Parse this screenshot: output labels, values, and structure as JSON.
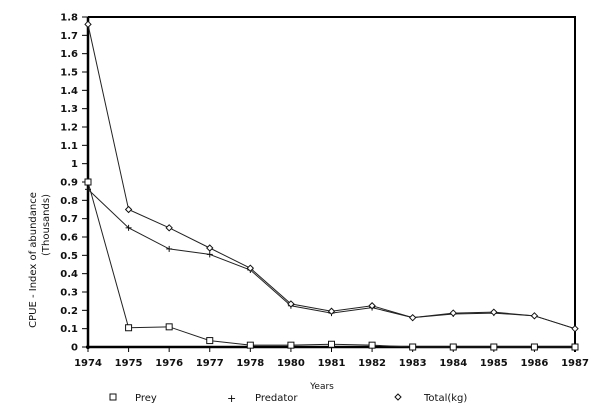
{
  "chart_data": {
    "type": "line",
    "title": "",
    "xlabel": "Years",
    "ylabel": "CPUE - Index of abundance",
    "ylabel_sub": "(Thousands)",
    "categories": [
      "1974",
      "1975",
      "1976",
      "1977",
      "1978",
      "1980",
      "1981",
      "1982",
      "1983",
      "1984",
      "1985",
      "1986",
      "1987"
    ],
    "yticks": [
      "0",
      "0.1",
      "0.2",
      "0.3",
      "0.4",
      "0.5",
      "0.6",
      "0.7",
      "0.8",
      "0.9",
      "1",
      "1.1",
      "1.2",
      "1.3",
      "1.4",
      "1.5",
      "1.6",
      "1.7",
      "1.8"
    ],
    "ylim": [
      0,
      1.8
    ],
    "series": [
      {
        "name": "Prey",
        "marker": "square",
        "values": [
          0.9,
          0.105,
          0.11,
          0.035,
          0.01,
          0.01,
          0.015,
          0.01,
          0.0,
          0.0,
          0.0,
          0.0,
          0.0
        ]
      },
      {
        "name": "Predator",
        "marker": "plus",
        "values": [
          0.86,
          0.65,
          0.535,
          0.505,
          0.42,
          0.225,
          0.185,
          0.215,
          0.16,
          0.18,
          0.185,
          0.17,
          0.1
        ]
      },
      {
        "name": "Total(kg)",
        "marker": "diamond",
        "values": [
          1.76,
          0.75,
          0.65,
          0.54,
          0.43,
          0.235,
          0.195,
          0.225,
          0.16,
          0.185,
          0.19,
          0.17,
          0.1
        ]
      }
    ],
    "legend_position": "bottom",
    "grid": false
  },
  "legend": {
    "prey": "Prey",
    "predator": "Predator",
    "total": "Total(kg)"
  },
  "axes": {
    "xlabel": "Years",
    "ylabel": "CPUE - Index of abundance",
    "ylabel_sub": "(Thousands)"
  }
}
